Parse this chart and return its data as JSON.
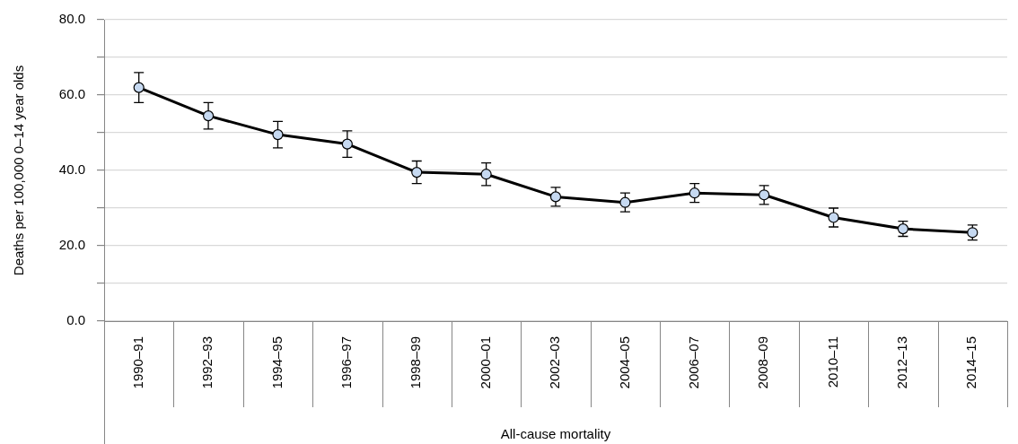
{
  "chart_data": {
    "type": "line",
    "ylabel": "Deaths per 100,000 0–14 year olds",
    "xlabel": "All-cause mortality",
    "categories": [
      "1990–91",
      "1992–93",
      "1994–95",
      "1996–97",
      "1998–99",
      "2000–01",
      "2002–03",
      "2004–05",
      "2006–07",
      "2008–09",
      "2010–11",
      "2012–13",
      "2014–15"
    ],
    "series": [
      {
        "color": "#000000",
        "values": [
          62,
          54.5,
          49.5,
          47,
          39.5,
          39,
          33,
          31.5,
          34,
          33.5,
          27.5,
          24.5,
          23.5
        ],
        "errors": [
          4,
          3.5,
          3.5,
          3.5,
          3,
          3,
          2.5,
          2.5,
          2.5,
          2.5,
          2.5,
          2,
          2
        ]
      }
    ],
    "ylim": [
      0,
      80
    ],
    "yticks": [
      {
        "value": 0,
        "label": "0.0"
      },
      {
        "value": 10,
        "label": null
      },
      {
        "value": 20,
        "label": "20.0"
      },
      {
        "value": 30,
        "label": null
      },
      {
        "value": 40,
        "label": "40.0"
      },
      {
        "value": 50,
        "label": null
      },
      {
        "value": 60,
        "label": "60.0"
      },
      {
        "value": 70,
        "label": null
      },
      {
        "value": 80,
        "label": "80.0"
      }
    ],
    "grid": "y",
    "marker": "circle",
    "line_style": "solid"
  }
}
